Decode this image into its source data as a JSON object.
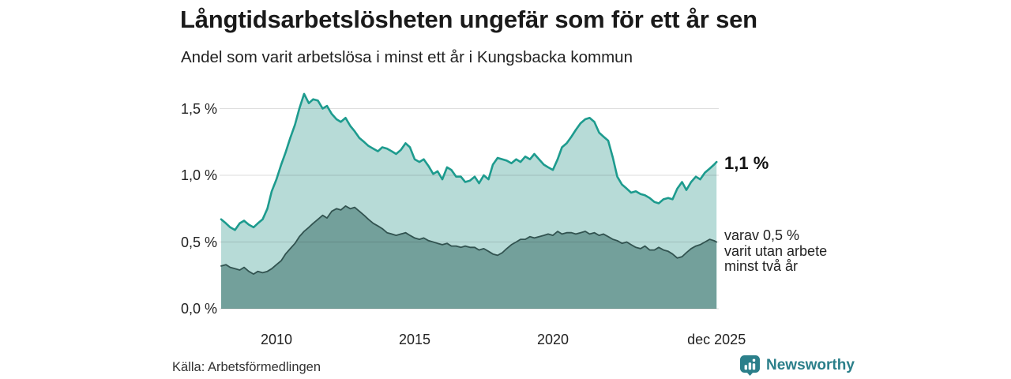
{
  "header": {
    "title": "Långtidsarbetslösheten ungefär som för ett år sen",
    "subtitle": "Andel som varit arbetslösa i minst ett år i Kungsbacka kommun"
  },
  "annotations": {
    "latest_total": "1,1 %",
    "latest_breakdown": "varav 0,5 %\nvarit utan arbete\nminst två år"
  },
  "footer": {
    "source": "Källa: Arbetsförmedlingen",
    "brand_name": "Newsworthy"
  },
  "colors": {
    "accent_line": "#1d9b8e",
    "accent_fill": "#b7dbd7",
    "secondary_line": "#325350",
    "secondary_fill": "#73a09b",
    "grid": "#dedede",
    "brand": "#2b7f8a",
    "text": "#1a1a1a"
  },
  "chart_data": {
    "type": "area",
    "title": "Långtidsarbetslösheten ungefär som för ett år sen",
    "subtitle": "Andel som varit arbetslösa i minst ett år i Kungsbacka kommun",
    "unit": "%",
    "xlim": [
      2008,
      2026
    ],
    "ylim": [
      0,
      1.5
    ],
    "grid": true,
    "legend": "annotations-right",
    "latest": {
      "total": 1.1,
      "two_year": 0.5,
      "period": "dec 2025"
    },
    "xticks": [
      {
        "label": "2010",
        "x": 2010
      },
      {
        "label": "2015",
        "x": 2015
      },
      {
        "label": "2020",
        "x": 2020
      },
      {
        "label": "dec 2025",
        "x": 2025.92
      }
    ],
    "yticks": [
      {
        "label": "0,0 %",
        "v": 0.0
      },
      {
        "label": "0,5 %",
        "v": 0.5
      },
      {
        "label": "1,0 %",
        "v": 1.0
      },
      {
        "label": "1,5 %",
        "v": 1.5
      }
    ],
    "x": [
      2008,
      2008.17,
      2008.33,
      2008.5,
      2008.67,
      2008.83,
      2009,
      2009.17,
      2009.33,
      2009.5,
      2009.67,
      2009.83,
      2010,
      2010.17,
      2010.33,
      2010.5,
      2010.67,
      2010.83,
      2011,
      2011.17,
      2011.33,
      2011.5,
      2011.67,
      2011.83,
      2012,
      2012.17,
      2012.33,
      2012.5,
      2012.67,
      2012.83,
      2013,
      2013.17,
      2013.33,
      2013.5,
      2013.67,
      2013.83,
      2014,
      2014.17,
      2014.33,
      2014.5,
      2014.67,
      2014.83,
      2015,
      2015.17,
      2015.33,
      2015.5,
      2015.67,
      2015.83,
      2016,
      2016.17,
      2016.33,
      2016.5,
      2016.67,
      2016.83,
      2017,
      2017.17,
      2017.33,
      2017.5,
      2017.67,
      2017.83,
      2018,
      2018.17,
      2018.33,
      2018.5,
      2018.67,
      2018.83,
      2019,
      2019.17,
      2019.33,
      2019.5,
      2019.67,
      2019.83,
      2020,
      2020.17,
      2020.33,
      2020.5,
      2020.67,
      2020.83,
      2021,
      2021.17,
      2021.33,
      2021.5,
      2021.67,
      2021.83,
      2022,
      2022.17,
      2022.33,
      2022.5,
      2022.67,
      2022.83,
      2023,
      2023.17,
      2023.33,
      2023.5,
      2023.67,
      2023.83,
      2024,
      2024.17,
      2024.33,
      2024.5,
      2024.67,
      2024.83,
      2025,
      2025.17,
      2025.33,
      2025.5,
      2025.67,
      2025.83,
      2025.92
    ],
    "series": [
      {
        "name": "Arbetslösa minst ett år",
        "color": "#1d9b8e",
        "fill": "#b7dbd7",
        "stroke_width": 2.6,
        "values": [
          0.67,
          0.64,
          0.61,
          0.59,
          0.64,
          0.66,
          0.63,
          0.61,
          0.64,
          0.67,
          0.75,
          0.88,
          0.97,
          1.08,
          1.17,
          1.28,
          1.38,
          1.5,
          1.61,
          1.54,
          1.57,
          1.56,
          1.5,
          1.52,
          1.46,
          1.42,
          1.4,
          1.43,
          1.37,
          1.33,
          1.28,
          1.25,
          1.22,
          1.2,
          1.18,
          1.21,
          1.2,
          1.18,
          1.16,
          1.19,
          1.24,
          1.21,
          1.12,
          1.1,
          1.12,
          1.07,
          1.01,
          1.03,
          0.97,
          1.06,
          1.04,
          0.99,
          0.99,
          0.95,
          0.96,
          0.99,
          0.94,
          1.0,
          0.97,
          1.08,
          1.13,
          1.12,
          1.11,
          1.09,
          1.12,
          1.1,
          1.14,
          1.12,
          1.16,
          1.12,
          1.08,
          1.06,
          1.04,
          1.12,
          1.21,
          1.24,
          1.29,
          1.34,
          1.39,
          1.42,
          1.43,
          1.4,
          1.32,
          1.29,
          1.26,
          1.13,
          0.99,
          0.93,
          0.9,
          0.87,
          0.88,
          0.86,
          0.85,
          0.83,
          0.8,
          0.79,
          0.82,
          0.83,
          0.82,
          0.9,
          0.95,
          0.89,
          0.95,
          0.99,
          0.97,
          1.02,
          1.05,
          1.08,
          1.1
        ]
      },
      {
        "name": "Arbetslösa minst två år",
        "color": "#325350",
        "fill": "#73a09b",
        "stroke_width": 1.8,
        "values": [
          0.32,
          0.33,
          0.31,
          0.3,
          0.29,
          0.31,
          0.28,
          0.26,
          0.28,
          0.27,
          0.28,
          0.3,
          0.33,
          0.36,
          0.41,
          0.45,
          0.49,
          0.54,
          0.58,
          0.61,
          0.64,
          0.67,
          0.7,
          0.68,
          0.73,
          0.75,
          0.74,
          0.77,
          0.75,
          0.76,
          0.73,
          0.7,
          0.67,
          0.64,
          0.62,
          0.6,
          0.57,
          0.56,
          0.55,
          0.56,
          0.57,
          0.55,
          0.53,
          0.52,
          0.53,
          0.51,
          0.5,
          0.49,
          0.48,
          0.49,
          0.47,
          0.47,
          0.46,
          0.47,
          0.46,
          0.46,
          0.44,
          0.45,
          0.43,
          0.41,
          0.4,
          0.42,
          0.45,
          0.48,
          0.5,
          0.52,
          0.52,
          0.54,
          0.53,
          0.54,
          0.55,
          0.56,
          0.55,
          0.58,
          0.56,
          0.57,
          0.57,
          0.56,
          0.57,
          0.58,
          0.56,
          0.57,
          0.55,
          0.56,
          0.54,
          0.52,
          0.51,
          0.49,
          0.5,
          0.48,
          0.46,
          0.45,
          0.47,
          0.44,
          0.44,
          0.46,
          0.44,
          0.43,
          0.41,
          0.38,
          0.39,
          0.42,
          0.45,
          0.47,
          0.48,
          0.5,
          0.52,
          0.51,
          0.5
        ]
      }
    ]
  }
}
